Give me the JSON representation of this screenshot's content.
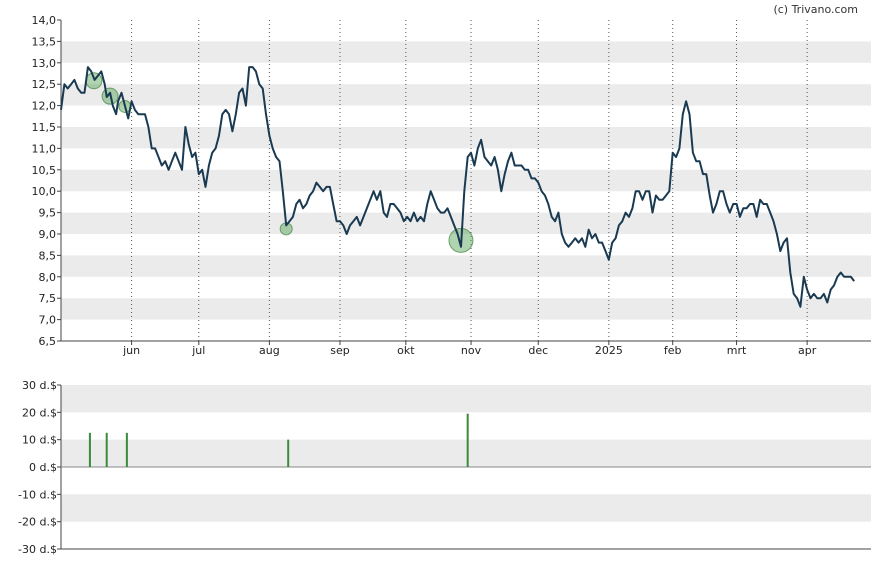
{
  "credit": "(c) Trivano.com",
  "chart_data": [
    {
      "type": "line",
      "title": "",
      "ylim": [
        6.5,
        14.0
      ],
      "grid": "alternating horizontal bands; dotted vertical month lines",
      "y_ticks": [
        "6,5",
        "7,0",
        "7,5",
        "8,0",
        "8,5",
        "9,0",
        "9,5",
        "10,0",
        "10,5",
        "11,0",
        "11,5",
        "12,0",
        "12,5",
        "13,0",
        "13,5",
        "14,0"
      ],
      "x_ticks": [
        {
          "label": "jun",
          "x": 1.0
        },
        {
          "label": "jul",
          "x": 2.0
        },
        {
          "label": "aug",
          "x": 3.05
        },
        {
          "label": "sep",
          "x": 4.1
        },
        {
          "label": "okt",
          "x": 5.08
        },
        {
          "label": "nov",
          "x": 6.05
        },
        {
          "label": "dec",
          "x": 7.05
        },
        {
          "label": "2025",
          "x": 8.1
        },
        {
          "label": "feb",
          "x": 9.05
        },
        {
          "label": "mrt",
          "x": 10.0
        },
        {
          "label": "apr",
          "x": 11.05
        }
      ],
      "xlim": [
        -0.05,
        12.0
      ],
      "series": [
        {
          "color": "#1a3a52",
          "points": [
            [
              -0.05,
              11.9
            ],
            [
              0.0,
              12.5
            ],
            [
              0.05,
              12.4
            ],
            [
              0.1,
              12.5
            ],
            [
              0.15,
              12.6
            ],
            [
              0.2,
              12.4
            ],
            [
              0.25,
              12.3
            ],
            [
              0.3,
              12.3
            ],
            [
              0.35,
              12.9
            ],
            [
              0.4,
              12.8
            ],
            [
              0.45,
              12.6
            ],
            [
              0.5,
              12.7
            ],
            [
              0.55,
              12.8
            ],
            [
              0.6,
              12.5
            ],
            [
              0.63,
              12.2
            ],
            [
              0.68,
              12.3
            ],
            [
              0.72,
              12.0
            ],
            [
              0.77,
              11.8
            ],
            [
              0.8,
              12.1
            ],
            [
              0.85,
              12.3
            ],
            [
              0.9,
              12.0
            ],
            [
              0.95,
              11.7
            ],
            [
              1.0,
              12.1
            ],
            [
              1.05,
              11.9
            ],
            [
              1.1,
              11.8
            ],
            [
              1.15,
              11.8
            ],
            [
              1.2,
              11.8
            ],
            [
              1.25,
              11.5
            ],
            [
              1.3,
              11.0
            ],
            [
              1.35,
              11.0
            ],
            [
              1.4,
              10.8
            ],
            [
              1.45,
              10.6
            ],
            [
              1.5,
              10.7
            ],
            [
              1.55,
              10.5
            ],
            [
              1.6,
              10.7
            ],
            [
              1.65,
              10.9
            ],
            [
              1.7,
              10.7
            ],
            [
              1.75,
              10.5
            ],
            [
              1.8,
              11.5
            ],
            [
              1.85,
              11.1
            ],
            [
              1.9,
              10.8
            ],
            [
              1.95,
              10.9
            ],
            [
              2.0,
              10.4
            ],
            [
              2.05,
              10.5
            ],
            [
              2.1,
              10.1
            ],
            [
              2.15,
              10.6
            ],
            [
              2.2,
              10.9
            ],
            [
              2.25,
              11.0
            ],
            [
              2.3,
              11.3
            ],
            [
              2.35,
              11.8
            ],
            [
              2.4,
              11.9
            ],
            [
              2.45,
              11.8
            ],
            [
              2.5,
              11.4
            ],
            [
              2.55,
              11.8
            ],
            [
              2.6,
              12.3
            ],
            [
              2.65,
              12.4
            ],
            [
              2.7,
              12.0
            ],
            [
              2.75,
              12.9
            ],
            [
              2.8,
              12.9
            ],
            [
              2.85,
              12.8
            ],
            [
              2.9,
              12.5
            ],
            [
              2.95,
              12.4
            ],
            [
              3.0,
              11.8
            ],
            [
              3.05,
              11.3
            ],
            [
              3.1,
              11.0
            ],
            [
              3.15,
              10.8
            ],
            [
              3.2,
              10.7
            ],
            [
              3.25,
              10.0
            ],
            [
              3.3,
              9.2
            ],
            [
              3.35,
              9.3
            ],
            [
              3.4,
              9.4
            ],
            [
              3.45,
              9.7
            ],
            [
              3.5,
              9.8
            ],
            [
              3.55,
              9.6
            ],
            [
              3.6,
              9.7
            ],
            [
              3.65,
              9.9
            ],
            [
              3.7,
              10.0
            ],
            [
              3.75,
              10.2
            ],
            [
              3.8,
              10.1
            ],
            [
              3.85,
              10.0
            ],
            [
              3.9,
              10.1
            ],
            [
              3.95,
              10.1
            ],
            [
              4.0,
              9.7
            ],
            [
              4.05,
              9.3
            ],
            [
              4.1,
              9.3
            ],
            [
              4.15,
              9.2
            ],
            [
              4.2,
              9.0
            ],
            [
              4.25,
              9.2
            ],
            [
              4.3,
              9.3
            ],
            [
              4.35,
              9.4
            ],
            [
              4.4,
              9.2
            ],
            [
              4.45,
              9.4
            ],
            [
              4.5,
              9.6
            ],
            [
              4.55,
              9.8
            ],
            [
              4.6,
              10.0
            ],
            [
              4.65,
              9.8
            ],
            [
              4.7,
              10.0
            ],
            [
              4.75,
              9.5
            ],
            [
              4.8,
              9.4
            ],
            [
              4.85,
              9.7
            ],
            [
              4.9,
              9.7
            ],
            [
              4.95,
              9.6
            ],
            [
              5.0,
              9.5
            ],
            [
              5.05,
              9.3
            ],
            [
              5.1,
              9.4
            ],
            [
              5.15,
              9.3
            ],
            [
              5.2,
              9.5
            ],
            [
              5.25,
              9.3
            ],
            [
              5.3,
              9.4
            ],
            [
              5.35,
              9.3
            ],
            [
              5.4,
              9.7
            ],
            [
              5.45,
              10.0
            ],
            [
              5.5,
              9.8
            ],
            [
              5.55,
              9.6
            ],
            [
              5.6,
              9.5
            ],
            [
              5.65,
              9.5
            ],
            [
              5.7,
              9.6
            ],
            [
              5.75,
              9.4
            ],
            [
              5.8,
              9.2
            ],
            [
              5.85,
              9.0
            ],
            [
              5.9,
              8.7
            ],
            [
              5.95,
              10.0
            ],
            [
              6.0,
              10.8
            ],
            [
              6.05,
              10.9
            ],
            [
              6.1,
              10.6
            ],
            [
              6.15,
              11.0
            ],
            [
              6.2,
              11.2
            ],
            [
              6.25,
              10.8
            ],
            [
              6.3,
              10.7
            ],
            [
              6.35,
              10.6
            ],
            [
              6.4,
              10.8
            ],
            [
              6.45,
              10.5
            ],
            [
              6.5,
              10.0
            ],
            [
              6.55,
              10.4
            ],
            [
              6.6,
              10.7
            ],
            [
              6.65,
              10.9
            ],
            [
              6.7,
              10.6
            ],
            [
              6.75,
              10.6
            ],
            [
              6.8,
              10.6
            ],
            [
              6.85,
              10.5
            ],
            [
              6.9,
              10.5
            ],
            [
              6.95,
              10.3
            ],
            [
              7.0,
              10.3
            ],
            [
              7.05,
              10.2
            ],
            [
              7.1,
              10.0
            ],
            [
              7.15,
              9.9
            ],
            [
              7.2,
              9.7
            ],
            [
              7.25,
              9.4
            ],
            [
              7.3,
              9.3
            ],
            [
              7.35,
              9.5
            ],
            [
              7.4,
              9.0
            ],
            [
              7.45,
              8.8
            ],
            [
              7.5,
              8.7
            ],
            [
              7.55,
              8.8
            ],
            [
              7.6,
              8.9
            ],
            [
              7.65,
              8.8
            ],
            [
              7.7,
              8.9
            ],
            [
              7.75,
              8.7
            ],
            [
              7.8,
              9.1
            ],
            [
              7.85,
              8.9
            ],
            [
              7.9,
              9.0
            ],
            [
              7.95,
              8.8
            ],
            [
              8.0,
              8.8
            ],
            [
              8.05,
              8.6
            ],
            [
              8.1,
              8.4
            ],
            [
              8.15,
              8.8
            ],
            [
              8.2,
              8.9
            ],
            [
              8.25,
              9.2
            ],
            [
              8.3,
              9.3
            ],
            [
              8.35,
              9.5
            ],
            [
              8.4,
              9.4
            ],
            [
              8.45,
              9.6
            ],
            [
              8.5,
              10.0
            ],
            [
              8.55,
              10.0
            ],
            [
              8.6,
              9.8
            ],
            [
              8.65,
              10.0
            ],
            [
              8.7,
              10.0
            ],
            [
              8.75,
              9.5
            ],
            [
              8.8,
              9.9
            ],
            [
              8.85,
              9.8
            ],
            [
              8.9,
              9.8
            ],
            [
              8.95,
              9.9
            ],
            [
              9.0,
              10.0
            ],
            [
              9.05,
              10.9
            ],
            [
              9.1,
              10.8
            ],
            [
              9.15,
              11.0
            ],
            [
              9.2,
              11.8
            ],
            [
              9.25,
              12.1
            ],
            [
              9.3,
              11.8
            ],
            [
              9.35,
              10.9
            ],
            [
              9.4,
              10.7
            ],
            [
              9.45,
              10.7
            ],
            [
              9.5,
              10.4
            ],
            [
              9.55,
              10.4
            ],
            [
              9.6,
              9.9
            ],
            [
              9.65,
              9.5
            ],
            [
              9.7,
              9.7
            ],
            [
              9.75,
              10.0
            ],
            [
              9.8,
              10.0
            ],
            [
              9.85,
              9.7
            ],
            [
              9.9,
              9.5
            ],
            [
              9.95,
              9.7
            ],
            [
              10.0,
              9.7
            ],
            [
              10.05,
              9.4
            ],
            [
              10.1,
              9.6
            ],
            [
              10.15,
              9.6
            ],
            [
              10.2,
              9.7
            ],
            [
              10.25,
              9.7
            ],
            [
              10.3,
              9.4
            ],
            [
              10.35,
              9.8
            ],
            [
              10.4,
              9.7
            ],
            [
              10.45,
              9.7
            ],
            [
              10.5,
              9.5
            ],
            [
              10.55,
              9.3
            ],
            [
              10.6,
              9.0
            ],
            [
              10.65,
              8.6
            ],
            [
              10.7,
              8.8
            ],
            [
              10.75,
              8.9
            ],
            [
              10.8,
              8.1
            ],
            [
              10.85,
              7.6
            ],
            [
              10.9,
              7.5
            ],
            [
              10.95,
              7.3
            ],
            [
              11.0,
              8.0
            ],
            [
              11.05,
              7.7
            ],
            [
              11.1,
              7.5
            ],
            [
              11.15,
              7.6
            ],
            [
              11.2,
              7.5
            ],
            [
              11.25,
              7.5
            ],
            [
              11.3,
              7.6
            ],
            [
              11.35,
              7.4
            ],
            [
              11.4,
              7.7
            ],
            [
              11.45,
              7.8
            ],
            [
              11.5,
              8.0
            ],
            [
              11.55,
              8.1
            ],
            [
              11.6,
              8.0
            ],
            [
              11.65,
              8.0
            ],
            [
              11.7,
              8.0
            ],
            [
              11.75,
              7.9
            ]
          ]
        }
      ],
      "markers": [
        {
          "x": 0.44,
          "y": 12.58,
          "size": 8
        },
        {
          "x": 0.68,
          "y": 12.22,
          "size": 8
        },
        {
          "x": 0.9,
          "y": 11.98,
          "size": 6
        },
        {
          "x": 3.3,
          "y": 9.12,
          "size": 6
        },
        {
          "x": 5.9,
          "y": 8.85,
          "size": 12
        }
      ]
    },
    {
      "type": "bar",
      "title": "",
      "ylim": [
        -30,
        30
      ],
      "y_ticks": [
        "30 d.$",
        "20 d.$",
        "10 d.$",
        "0 d.$",
        "-10 d.$",
        "-20 d.$",
        "-30 d.$"
      ],
      "y_tick_values": [
        30,
        20,
        10,
        0,
        -10,
        -20,
        -30
      ],
      "bar_color": "#3a8a3a",
      "bars": [
        {
          "x": 0.38,
          "value": 12.5
        },
        {
          "x": 0.63,
          "value": 12.5
        },
        {
          "x": 0.93,
          "value": 12.5
        },
        {
          "x": 3.33,
          "value": 10.0
        },
        {
          "x": 6.0,
          "value": 19.5
        }
      ]
    }
  ]
}
